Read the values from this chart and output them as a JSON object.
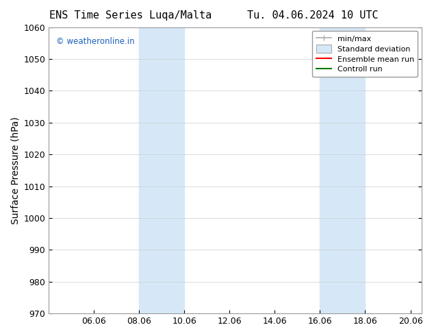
{
  "title_left": "ENS Time Series Luqa/Malta",
  "title_right": "Tu. 04.06.2024 10 UTC",
  "ylabel": "Surface Pressure (hPa)",
  "ylim": [
    970,
    1060
  ],
  "yticks": [
    970,
    980,
    990,
    1000,
    1010,
    1020,
    1030,
    1040,
    1050,
    1060
  ],
  "xlim_start": "04.06.2024 00:00",
  "xlim_end": "20.06.2024 12:00",
  "xtick_labels": [
    "06.06",
    "08.06",
    "10.06",
    "12.06",
    "14.06",
    "16.06",
    "18.06",
    "20.06"
  ],
  "xtick_positions": [
    2,
    4,
    6,
    8,
    10,
    12,
    14,
    16
  ],
  "shaded_bands": [
    {
      "x_start": 4,
      "x_end": 6,
      "color": "#d6e8f7"
    },
    {
      "x_start": 12,
      "x_end": 14,
      "color": "#d6e8f7"
    }
  ],
  "watermark_text": "© weatheronline.in",
  "watermark_color": "#1a5fbd",
  "legend_items": [
    {
      "label": "min/max",
      "color": "#aaaaaa",
      "linestyle": "-",
      "type": "errorbar"
    },
    {
      "label": "Standard deviation",
      "color": "#ccddee",
      "linestyle": "-",
      "type": "band"
    },
    {
      "label": "Ensemble mean run",
      "color": "#ff0000",
      "linestyle": "-",
      "type": "line"
    },
    {
      "label": "Controll run",
      "color": "#007700",
      "linestyle": "-",
      "type": "line"
    }
  ],
  "background_color": "#ffffff",
  "grid_color": "#cccccc",
  "title_fontsize": 11,
  "tick_fontsize": 9,
  "ylabel_fontsize": 10
}
